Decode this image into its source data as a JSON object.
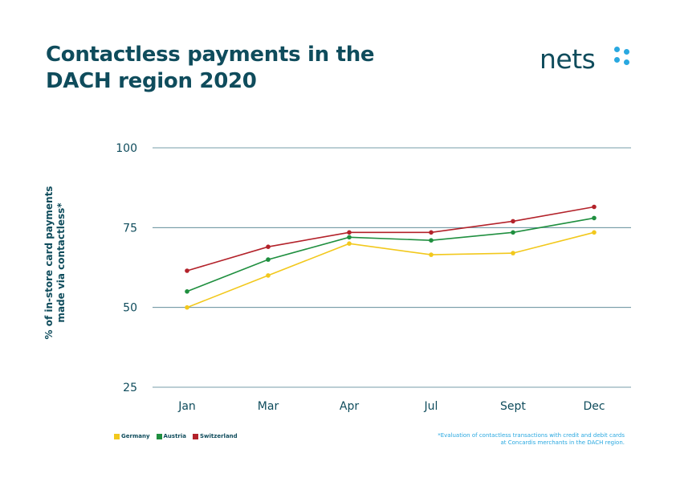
{
  "header": {
    "title_line1": "Contactless payments in the",
    "title_line2": "DACH region 2020"
  },
  "logo": {
    "text": "nets",
    "icon": "nets-dots-logo",
    "accent_color": "#29a8e0"
  },
  "ylabel_line1": "% of in-store card payments",
  "ylabel_line2": "made via contactless*",
  "footnote_line1": "*Evaluation of contactless transactions with credit and debit cards",
  "footnote_line2": "at Concardis merchants in the DACH region.",
  "chart_data": {
    "type": "line",
    "title": "Contactless payments in the DACH region 2020",
    "xlabel": "",
    "ylabel": "% of in-store card payments made via contactless*",
    "categories": [
      "Jan",
      "Mar",
      "Apr",
      "Jul",
      "Sept",
      "Dec"
    ],
    "yticks": [
      25,
      50,
      75,
      100
    ],
    "ylim": [
      25,
      100
    ],
    "grid": true,
    "legend_position": "bottom-left",
    "series": [
      {
        "name": "Germany",
        "color": "#f2c81c",
        "values": [
          50,
          60,
          70,
          66.5,
          67,
          73.5
        ]
      },
      {
        "name": "Austria",
        "color": "#1f8f3f",
        "values": [
          55,
          65,
          72,
          71,
          73.5,
          78
        ]
      },
      {
        "name": "Switzerland",
        "color": "#b3222a",
        "values": [
          61.5,
          69,
          73.5,
          73.5,
          77,
          81.5
        ]
      }
    ]
  }
}
